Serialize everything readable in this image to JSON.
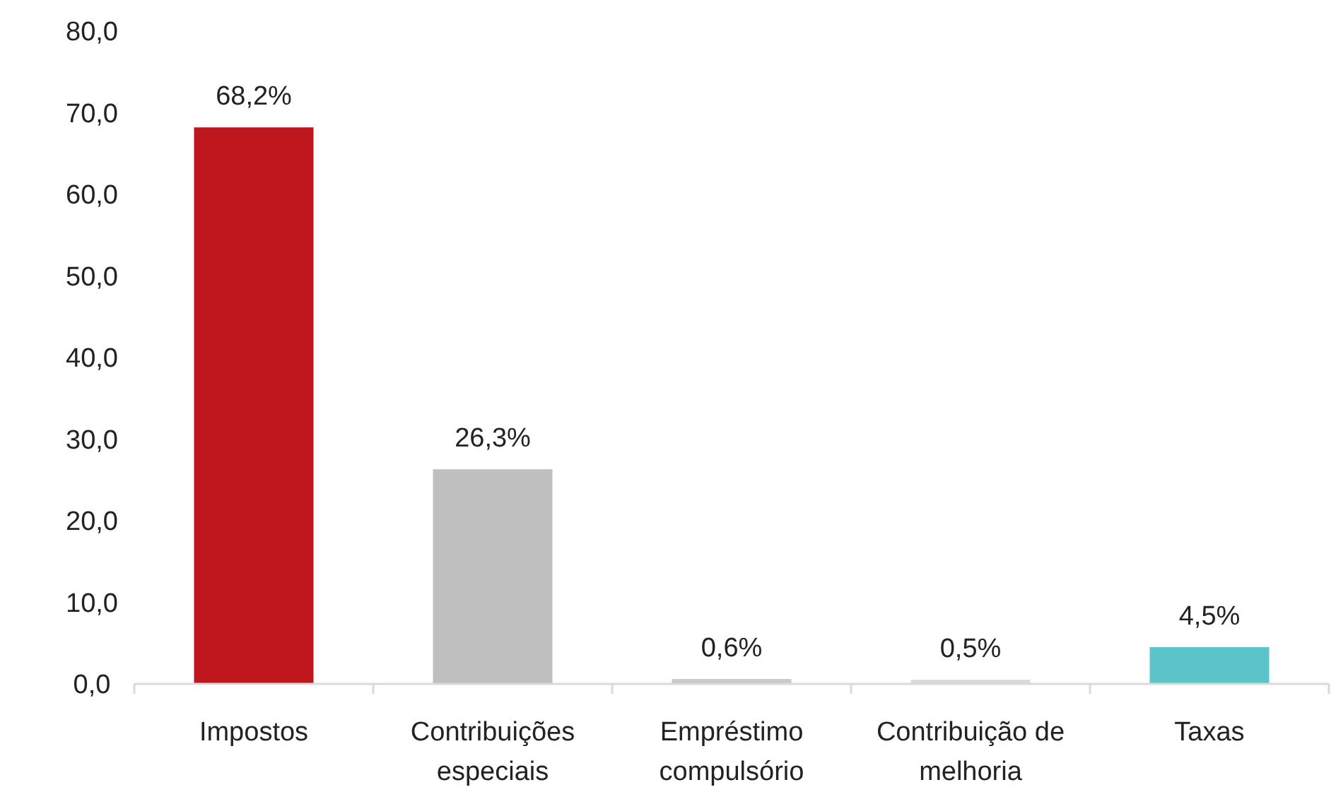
{
  "chart_data": {
    "type": "bar",
    "categories": [
      "Impostos",
      "Contribuições especiais",
      "Empréstimo compulsório",
      "Contribuição de melhoria",
      "Taxas"
    ],
    "values": [
      68.2,
      26.3,
      0.6,
      0.5,
      4.5
    ],
    "colors": [
      "#c0161e",
      "#bfbfbf",
      "#c9c9c9",
      "#d9d9d9",
      "#5bc4c9"
    ],
    "value_labels": [
      "68,2%",
      "26,3%",
      "0,6%",
      "0,5%",
      "4,5%"
    ],
    "ylim": [
      0,
      80
    ],
    "yticks": [
      {
        "value": 0,
        "label": "0,0"
      },
      {
        "value": 10,
        "label": "10,0"
      },
      {
        "value": 20,
        "label": "20,0"
      },
      {
        "value": 30,
        "label": "30,0"
      },
      {
        "value": 40,
        "label": "40,0"
      },
      {
        "value": 50,
        "label": "50,0"
      },
      {
        "value": 60,
        "label": "60,0"
      },
      {
        "value": 70,
        "label": "70,0"
      },
      {
        "value": 80,
        "label": "80,0"
      }
    ],
    "grid": false
  }
}
